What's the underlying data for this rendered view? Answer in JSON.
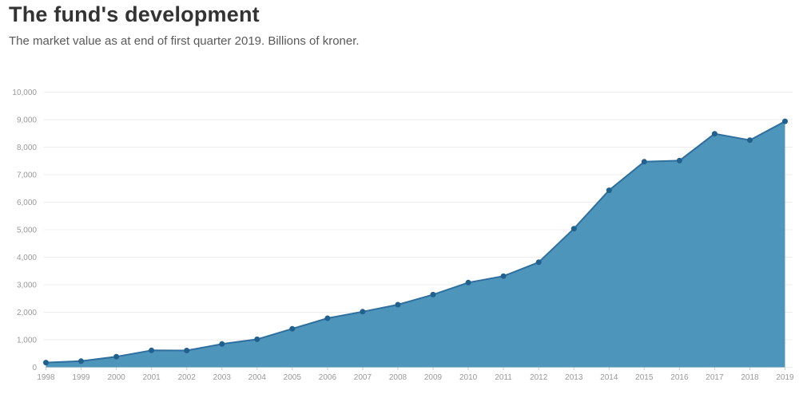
{
  "header": {
    "title": "The fund's development",
    "subtitle": "The market value as at end of first quarter 2019. Billions of kroner."
  },
  "chart_data": {
    "type": "area",
    "title": "The fund's development",
    "subtitle": "The market value as at end of first quarter 2019. Billions of kroner.",
    "xlabel": "",
    "ylabel": "",
    "unit": "Billions of kroner",
    "categories": [
      "1998",
      "1999",
      "2000",
      "2001",
      "2002",
      "2003",
      "2004",
      "2005",
      "2006",
      "2007",
      "2008",
      "2009",
      "2010",
      "2011",
      "2012",
      "2013",
      "2014",
      "2015",
      "2016",
      "2017",
      "2018",
      "2019"
    ],
    "values": [
      172,
      222,
      386,
      614,
      609,
      845,
      1016,
      1399,
      1784,
      2019,
      2275,
      2640,
      3077,
      3312,
      3816,
      5038,
      6431,
      7471,
      7510,
      8488,
      8256,
      8938
    ],
    "ylim": [
      0,
      10000
    ],
    "y_ticks": [
      0,
      1000,
      2000,
      3000,
      4000,
      5000,
      6000,
      7000,
      8000,
      9000,
      10000
    ],
    "y_tick_labels": [
      "0",
      "1,000",
      "2,000",
      "3,000",
      "4,000",
      "5,000",
      "6,000",
      "7,000",
      "8,000",
      "9,000",
      "10,000"
    ],
    "grid": true,
    "legend": "none",
    "colors": {
      "area": "#4e95bb",
      "line": "#2e6f9f",
      "point": "#21618e",
      "grid": "#ececec",
      "tick": "#cccccc",
      "axis_text": "#999999",
      "title": "#333333",
      "subtitle": "#5a5a5a"
    }
  }
}
